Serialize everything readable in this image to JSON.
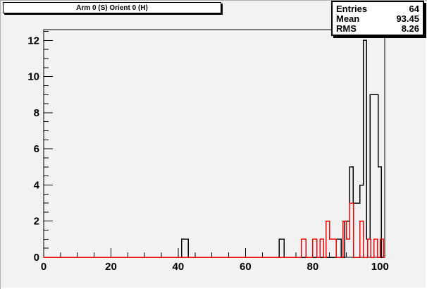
{
  "title_box": {
    "text": "Arm 0 (S) Orient 0 (H)"
  },
  "stats_box": {
    "rows": [
      {
        "label": "Entries",
        "value": "64"
      },
      {
        "label": "Mean",
        "value": "93.45"
      },
      {
        "label": "RMS",
        "value": "8.26"
      }
    ]
  },
  "colors": {
    "background": "#f2f2f2",
    "frame": "#000000",
    "black_histogram": "#000000",
    "red_histogram": "#ff0000",
    "box_background": "#ffffff"
  },
  "chart_data": {
    "type": "bar",
    "subtype": "step-histogram",
    "title": "Arm 0 (S) Orient 0 (H)",
    "xlabel": "",
    "ylabel": "",
    "xlim": [
      0,
      101.4
    ],
    "ylim": [
      0,
      12.6
    ],
    "grid": "off",
    "legend": "none",
    "x_axis": {
      "major_ticks": [
        0,
        20,
        40,
        60,
        80,
        100
      ],
      "minor_step": 5
    },
    "y_axis": {
      "major_ticks": [
        0,
        2,
        4,
        6,
        8,
        10,
        12
      ],
      "minor_step": 0.5
    },
    "stats": {
      "entries": 64,
      "mean": 93.45,
      "rms": 8.26
    },
    "series": [
      {
        "name": "black-histogram",
        "color": "#000000",
        "bars_x1_x2_height": [
          [
            41,
            43,
            1
          ],
          [
            70,
            71.5,
            1
          ],
          [
            87,
            88.5,
            1
          ],
          [
            89.5,
            91,
            2
          ],
          [
            91,
            92,
            5
          ],
          [
            92,
            94,
            3
          ],
          [
            94,
            95,
            4
          ],
          [
            95,
            96,
            12
          ],
          [
            96,
            97,
            1
          ],
          [
            97,
            99.4,
            9
          ],
          [
            99.4,
            100.4,
            5
          ]
        ]
      },
      {
        "name": "red-histogram",
        "color": "#ff0000",
        "bars_x1_x2_height": [
          [
            76.6,
            78,
            1
          ],
          [
            80,
            81.2,
            1
          ],
          [
            82.2,
            83.2,
            1
          ],
          [
            84,
            85,
            2
          ],
          [
            85,
            86,
            1
          ],
          [
            86,
            87,
            1
          ],
          [
            89,
            90,
            2
          ],
          [
            90,
            91,
            1
          ],
          [
            91,
            92.1,
            3
          ],
          [
            94,
            95,
            2
          ],
          [
            96.3,
            97.3,
            1
          ],
          [
            98.2,
            99.2,
            1
          ],
          [
            100.1,
            101,
            1
          ]
        ]
      }
    ]
  }
}
